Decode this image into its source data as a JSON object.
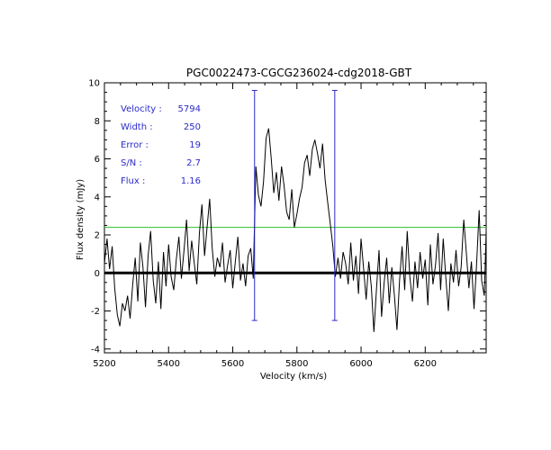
{
  "chart_data": {
    "type": "line",
    "title": "PGC0022473-CGCG236024-cdg2018-GBT",
    "xlabel": "Velocity (km/s)",
    "ylabel": "Flux density (mJy)",
    "xlim": [
      5200,
      6390
    ],
    "ylim": [
      -4.2,
      10
    ],
    "xticks": [
      5200,
      5400,
      5600,
      5800,
      6000,
      6200
    ],
    "yticks": [
      -4,
      -2,
      0,
      2,
      4,
      6,
      8,
      10
    ],
    "grid": false,
    "series": [
      {
        "color": "#000000",
        "x": [
          5200,
          5208,
          5216,
          5224,
          5232,
          5240,
          5248,
          5256,
          5264,
          5272,
          5280,
          5288,
          5296,
          5304,
          5312,
          5320,
          5328,
          5336,
          5344,
          5352,
          5360,
          5368,
          5376,
          5384,
          5392,
          5400,
          5408,
          5416,
          5424,
          5432,
          5440,
          5448,
          5456,
          5464,
          5472,
          5480,
          5488,
          5496,
          5504,
          5512,
          5520,
          5528,
          5536,
          5544,
          5552,
          5560,
          5568,
          5576,
          5584,
          5592,
          5600,
          5608,
          5616,
          5624,
          5632,
          5640,
          5648,
          5656,
          5664,
          5672,
          5680,
          5688,
          5696,
          5704,
          5712,
          5720,
          5728,
          5736,
          5744,
          5752,
          5760,
          5768,
          5776,
          5784,
          5792,
          5800,
          5808,
          5816,
          5824,
          5832,
          5840,
          5848,
          5856,
          5864,
          5872,
          5880,
          5888,
          5896,
          5904,
          5912,
          5920,
          5928,
          5936,
          5944,
          5952,
          5960,
          5968,
          5976,
          5984,
          5992,
          6000,
          6008,
          6016,
          6024,
          6032,
          6040,
          6048,
          6056,
          6064,
          6072,
          6080,
          6088,
          6096,
          6104,
          6112,
          6120,
          6128,
          6136,
          6144,
          6152,
          6160,
          6168,
          6176,
          6184,
          6192,
          6200,
          6208,
          6216,
          6224,
          6232,
          6240,
          6248,
          6256,
          6264,
          6272,
          6280,
          6288,
          6296,
          6304,
          6312,
          6320,
          6328,
          6336,
          6344,
          6352,
          6360,
          6368,
          6376,
          6384,
          6390
        ],
        "y": [
          0.5,
          1.8,
          0.2,
          1.4,
          -0.8,
          -2.2,
          -2.8,
          -1.6,
          -2.0,
          -1.2,
          -2.4,
          -0.6,
          0.8,
          -1.5,
          1.6,
          0.3,
          -1.8,
          0.9,
          2.2,
          -0.4,
          -1.6,
          0.6,
          -1.9,
          1.1,
          -0.7,
          1.5,
          -0.2,
          -0.9,
          0.7,
          1.9,
          -0.3,
          1.2,
          2.8,
          0.1,
          1.7,
          0.5,
          -0.6,
          2.1,
          3.6,
          0.9,
          2.4,
          3.9,
          1.3,
          -0.2,
          0.8,
          0.3,
          1.6,
          -0.5,
          0.4,
          1.2,
          -0.8,
          0.6,
          1.9,
          -0.4,
          0.5,
          -0.7,
          0.9,
          1.3,
          -0.3,
          5.6,
          4.1,
          3.5,
          4.8,
          7.1,
          7.6,
          6.0,
          4.2,
          5.3,
          3.8,
          5.6,
          4.6,
          3.2,
          2.8,
          4.4,
          2.4,
          3.1,
          3.9,
          4.5,
          5.8,
          6.2,
          5.1,
          6.5,
          7.0,
          6.3,
          5.5,
          6.8,
          4.9,
          3.7,
          2.6,
          1.4,
          -0.2,
          0.8,
          -0.3,
          1.1,
          0.5,
          -0.6,
          1.6,
          -0.4,
          0.9,
          -1.1,
          1.8,
          0.2,
          -1.4,
          0.6,
          -0.7,
          -3.1,
          -0.9,
          1.2,
          -2.3,
          -0.5,
          0.8,
          -1.6,
          0.3,
          -1.2,
          -3.0,
          -0.4,
          1.4,
          -0.9,
          2.2,
          -0.2,
          -1.5,
          0.6,
          -0.8,
          1.1,
          -0.3,
          0.7,
          -1.7,
          1.5,
          -0.6,
          0.4,
          2.1,
          -0.9,
          1.8,
          -0.2,
          -2.0,
          0.5,
          -0.5,
          1.2,
          -0.7,
          0.3,
          2.8,
          1.1,
          -0.8,
          0.6,
          -1.9,
          0.4,
          3.3,
          -0.4,
          -1.2,
          2.2
        ]
      }
    ],
    "baseline_y": 0,
    "level_line": {
      "y": 2.4,
      "color": "#2bbf2b"
    },
    "markers": {
      "x": [
        5668,
        5918
      ],
      "y_range": [
        -2.5,
        9.6
      ],
      "color": "#2a2acc"
    },
    "info": [
      {
        "label": "Velocity :",
        "value": "5794"
      },
      {
        "label": "Width  :",
        "value": "250"
      },
      {
        "label": "Error  :",
        "value": "19"
      },
      {
        "label": "S/N    :",
        "value": "2.7"
      },
      {
        "label": "Flux   :",
        "value": "1.16"
      }
    ]
  }
}
